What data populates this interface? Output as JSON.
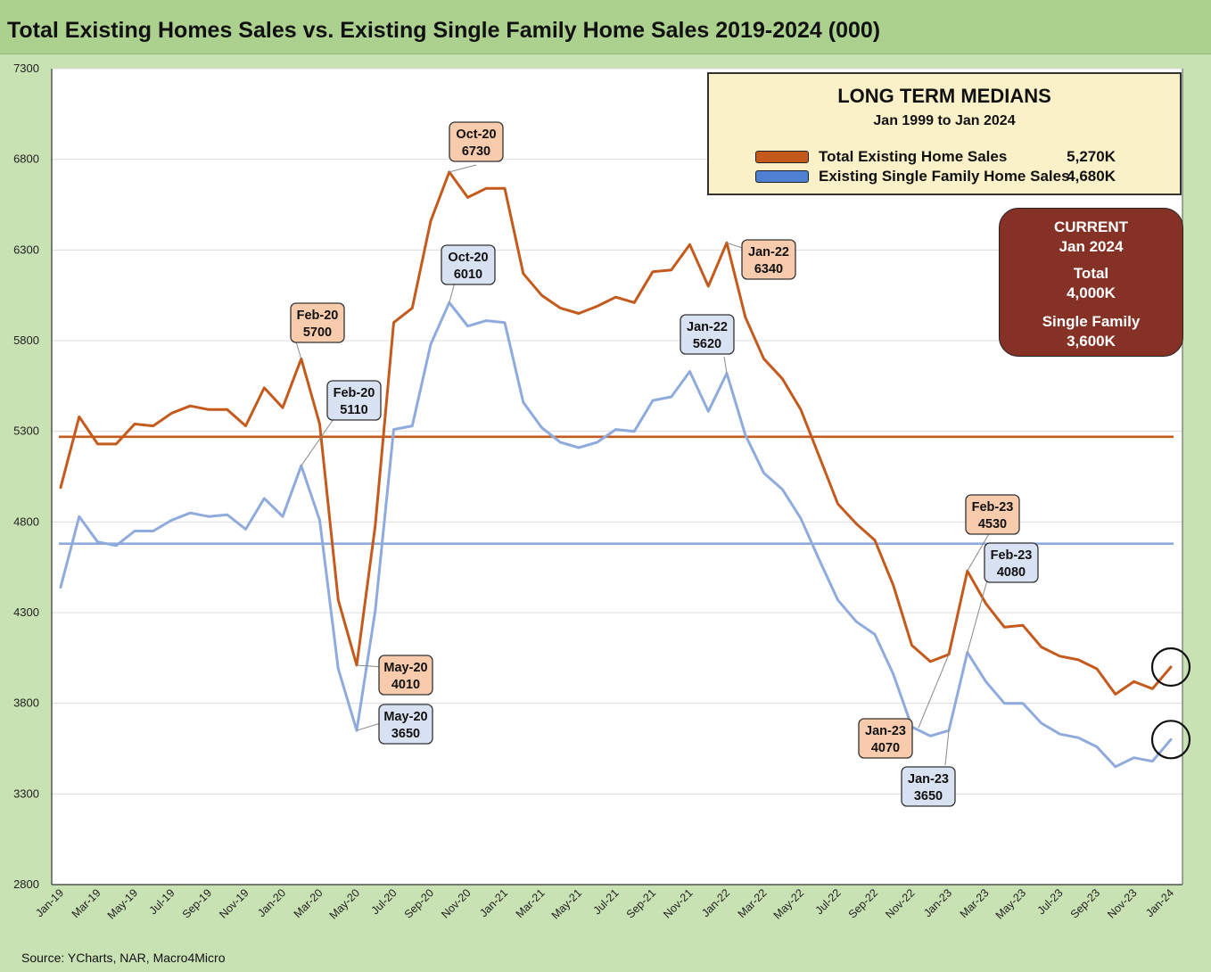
{
  "title": "Total Existing Homes Sales vs. Existing Single Family Home Sales 2019-2024 (000)",
  "source": "Source: YCharts, NAR, Macro4Micro",
  "colors": {
    "total": "#c45a1c",
    "single_family": "#8faadc",
    "single_family_legend": "#4f7fd1",
    "callout_total": "#f8cbad",
    "callout_sf": "#d9e2f3",
    "current_box": "#853125",
    "legend_box": "#fbf1c8",
    "frame": "#c9e2b3"
  },
  "legend": {
    "title": "LONG TERM MEDIANS",
    "subtitle": "Jan 1999 to Jan 2024",
    "items": [
      {
        "label": "Total Existing Home Sales",
        "value": "5,270K"
      },
      {
        "label": "Existing Single Family Home Sales",
        "value": "4,680K"
      }
    ]
  },
  "current": {
    "heading": "CURRENT",
    "period": "Jan 2024",
    "total_label": "Total",
    "total_value": "4,000K",
    "sf_label": "Single Family",
    "sf_value": "3,600K"
  },
  "chart_data": {
    "type": "line",
    "title": "Total Existing Homes Sales vs. Existing Single Family Home Sales 2019-2024 (000)",
    "ylim": [
      2800,
      7300
    ],
    "yticks": [
      2800,
      3300,
      3800,
      4300,
      4800,
      5300,
      5800,
      6300,
      6800,
      7300
    ],
    "grid": true,
    "months": [
      "Jan-19",
      "Feb-19",
      "Mar-19",
      "Apr-19",
      "May-19",
      "Jun-19",
      "Jul-19",
      "Aug-19",
      "Sep-19",
      "Oct-19",
      "Nov-19",
      "Dec-19",
      "Jan-20",
      "Feb-20",
      "Mar-20",
      "Apr-20",
      "May-20",
      "Jun-20",
      "Jul-20",
      "Aug-20",
      "Sep-20",
      "Oct-20",
      "Nov-20",
      "Dec-20",
      "Jan-21",
      "Feb-21",
      "Mar-21",
      "Apr-21",
      "May-21",
      "Jun-21",
      "Jul-21",
      "Aug-21",
      "Sep-21",
      "Oct-21",
      "Nov-21",
      "Dec-21",
      "Jan-22",
      "Feb-22",
      "Mar-22",
      "Apr-22",
      "May-22",
      "Jun-22",
      "Jul-22",
      "Aug-22",
      "Sep-22",
      "Oct-22",
      "Nov-22",
      "Dec-22",
      "Jan-23",
      "Feb-23",
      "Mar-23",
      "Apr-23",
      "May-23",
      "Jun-23",
      "Jul-23",
      "Aug-23",
      "Sep-23",
      "Oct-23",
      "Nov-23",
      "Dec-23",
      "Jan-24"
    ],
    "xtick_labels": [
      "Jan-19",
      "Mar-19",
      "May-19",
      "Jul-19",
      "Sep-19",
      "Nov-19",
      "Jan-20",
      "Mar-20",
      "May-20",
      "Jul-20",
      "Sep-20",
      "Nov-20",
      "Jan-21",
      "Mar-21",
      "May-21",
      "Jul-21",
      "Sep-21",
      "Nov-21",
      "Jan-22",
      "Mar-22",
      "May-22",
      "Jul-22",
      "Sep-22",
      "Nov-22",
      "Jan-23",
      "Mar-23",
      "May-23",
      "Jul-23",
      "Sep-23",
      "Nov-23",
      "Jan-24"
    ],
    "series": [
      {
        "name": "Total Existing Home Sales",
        "values": [
          4990,
          5380,
          5230,
          5230,
          5340,
          5330,
          5400,
          5440,
          5420,
          5420,
          5330,
          5540,
          5430,
          5700,
          5340,
          4370,
          4010,
          4780,
          5900,
          5980,
          6460,
          6730,
          6590,
          6640,
          6640,
          6170,
          6050,
          5980,
          5950,
          5990,
          6040,
          6010,
          6180,
          6190,
          6330,
          6100,
          6340,
          5930,
          5700,
          5590,
          5420,
          5160,
          4900,
          4790,
          4700,
          4450,
          4120,
          4030,
          4070,
          4530,
          4350,
          4220,
          4230,
          4110,
          4060,
          4040,
          3990,
          3850,
          3920,
          3880,
          4000
        ],
        "median": 5270
      },
      {
        "name": "Existing Single Family Home Sales",
        "values": [
          4440,
          4830,
          4690,
          4670,
          4750,
          4750,
          4810,
          4850,
          4830,
          4840,
          4760,
          4930,
          4830,
          5110,
          4810,
          3990,
          3650,
          4310,
          5310,
          5330,
          5780,
          6010,
          5880,
          5910,
          5900,
          5460,
          5320,
          5240,
          5210,
          5240,
          5310,
          5300,
          5470,
          5490,
          5630,
          5410,
          5620,
          5280,
          5070,
          4980,
          4820,
          4590,
          4370,
          4250,
          4180,
          3960,
          3670,
          3620,
          3650,
          4080,
          3920,
          3800,
          3800,
          3690,
          3630,
          3610,
          3560,
          3450,
          3500,
          3480,
          3600
        ],
        "median": 4680
      }
    ],
    "annotations": [
      {
        "month": "Feb-20",
        "value": 5700,
        "series": "total",
        "label": "Feb-20",
        "text": "5700"
      },
      {
        "month": "May-20",
        "value": 4010,
        "series": "total",
        "label": "May-20",
        "text": "4010"
      },
      {
        "month": "Oct-20",
        "value": 6730,
        "series": "total",
        "label": "Oct-20",
        "text": "6730"
      },
      {
        "month": "Jan-22",
        "value": 6340,
        "series": "total",
        "label": "Jan-22",
        "text": "6340"
      },
      {
        "month": "Jan-23",
        "value": 4070,
        "series": "total",
        "label": "Jan-23",
        "text": "4070"
      },
      {
        "month": "Feb-23",
        "value": 4530,
        "series": "total",
        "label": "Feb-23",
        "text": "4530"
      },
      {
        "month": "Feb-20",
        "value": 5110,
        "series": "single_family",
        "label": "Feb-20",
        "text": "5110"
      },
      {
        "month": "May-20",
        "value": 3650,
        "series": "single_family",
        "label": "May-20",
        "text": "3650"
      },
      {
        "month": "Oct-20",
        "value": 6010,
        "series": "single_family",
        "label": "Oct-20",
        "text": "6010"
      },
      {
        "month": "Jan-22",
        "value": 5620,
        "series": "single_family",
        "label": "Jan-22",
        "text": "5620"
      },
      {
        "month": "Jan-23",
        "value": 3650,
        "series": "single_family",
        "label": "Jan-23",
        "text": "3650"
      },
      {
        "month": "Feb-23",
        "value": 4080,
        "series": "single_family",
        "label": "Feb-23",
        "text": "4080"
      }
    ],
    "highlighted": [
      "Jan-24"
    ]
  }
}
